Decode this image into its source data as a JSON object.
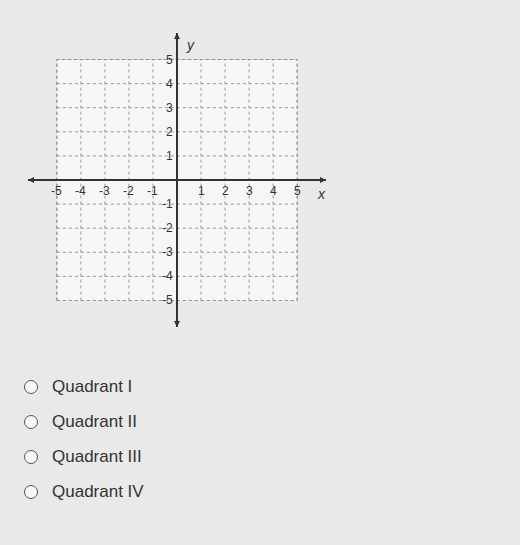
{
  "chart_data": {
    "type": "scatter",
    "xlabel": "x",
    "ylabel": "y",
    "xlim": [
      -6.2,
      6.2
    ],
    "ylim": [
      -6.1,
      6.1
    ],
    "xticks": [
      -5,
      -4,
      -3,
      -2,
      -1,
      1,
      2,
      3,
      4,
      5
    ],
    "yticks": [
      -5,
      -4,
      -3,
      -2,
      -1,
      1,
      2,
      3,
      4,
      5
    ],
    "grid": true
  },
  "options": [
    "Quadrant I",
    "Quadrant II",
    "Quadrant III",
    "Quadrant IV"
  ]
}
